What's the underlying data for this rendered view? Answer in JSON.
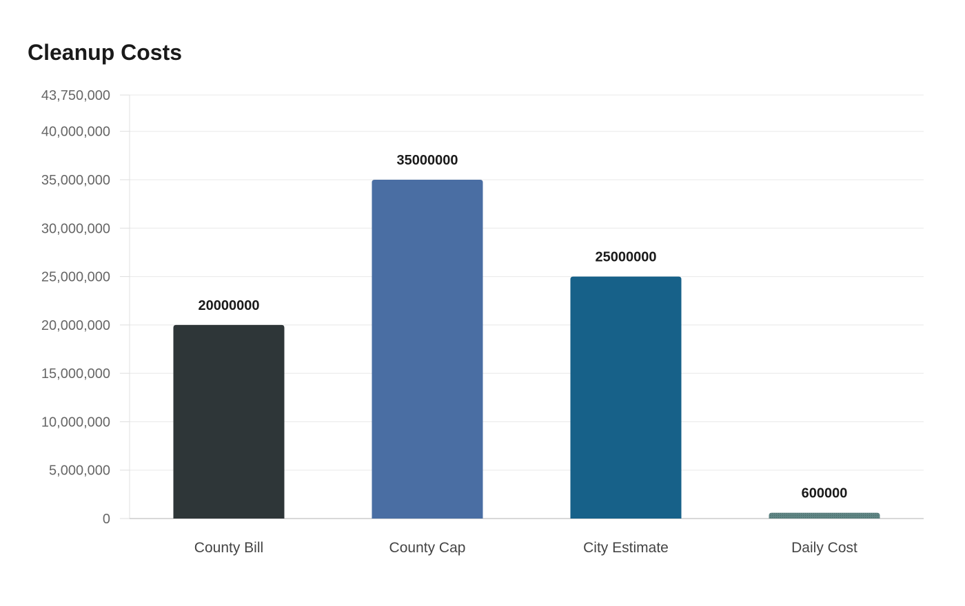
{
  "chart_data": {
    "type": "bar",
    "title": "Cleanup Costs",
    "xlabel": "",
    "ylabel": "",
    "categories": [
      "County Bill",
      "County Cap",
      "City Estimate",
      "Daily Cost"
    ],
    "values": [
      20000000,
      35000000,
      25000000,
      600000
    ],
    "value_labels": [
      "20000000",
      "35000000",
      "25000000",
      "600000"
    ],
    "colors": [
      "#2e3638",
      "#4a6ea3",
      "#176189",
      "#5f8584"
    ],
    "ylim": [
      0,
      43750000
    ],
    "yticks": [
      0,
      5000000,
      10000000,
      15000000,
      20000000,
      25000000,
      30000000,
      35000000,
      40000000,
      43750000
    ],
    "ytick_labels": [
      "0",
      "5,000,000",
      "10,000,000",
      "15,000,000",
      "20,000,000",
      "25,000,000",
      "30,000,000",
      "35,000,000",
      "40,000,000",
      "43,750,000"
    ],
    "grid": true,
    "legend": "none"
  }
}
